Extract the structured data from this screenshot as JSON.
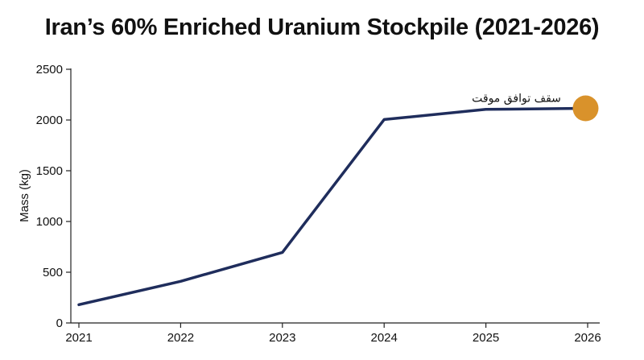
{
  "chart_data": {
    "type": "line",
    "title": "Iran’s 60% Enriched Uranium Stockpile (2021-2026)",
    "xlabel": "",
    "ylabel": "Mass (kg)",
    "x": [
      "2021",
      "2022",
      "2023",
      "2024",
      "2025",
      "2026"
    ],
    "x_values": [
      2021,
      2022,
      2023,
      2024,
      2025,
      2026
    ],
    "y_ticks": [
      0,
      500,
      1000,
      1500,
      2000,
      2500
    ],
    "ylim": [
      0,
      2500
    ],
    "xlim": [
      2021,
      2026
    ],
    "grid": false,
    "series": [
      {
        "x": [
          2021.0,
          2022.0,
          2023.0,
          2024.0,
          2025.0,
          2025.98
        ],
        "y": [
          180,
          410,
          695,
          2005,
          2105,
          2115
        ],
        "color": "#1f2d5c"
      }
    ],
    "highlight_point": {
      "x": 2025.98,
      "y": 2115,
      "color": "#d9922b"
    },
    "annotation": {
      "text": "سقف توافق موقت",
      "x": 2025.3,
      "y": 2220
    }
  }
}
